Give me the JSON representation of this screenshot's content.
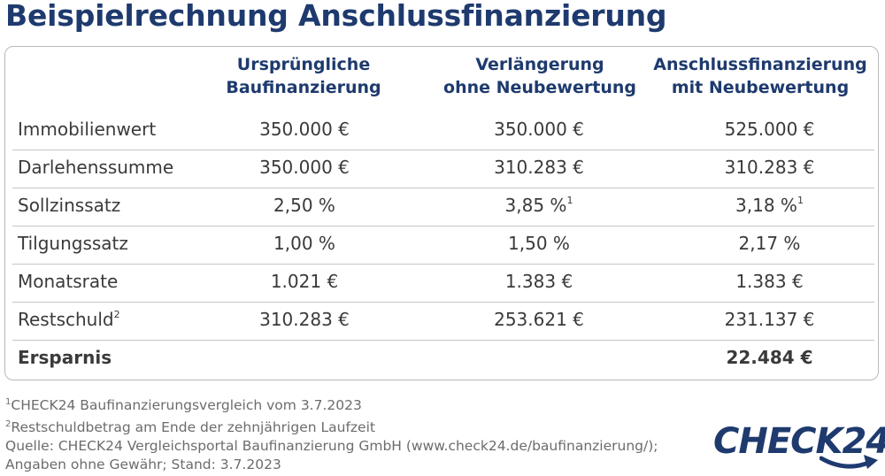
{
  "title": "Beispielrechnung Anschlussfinanzierung",
  "columns": [
    {
      "line1": "Ursprüngliche",
      "line2": "Baufinanzierung"
    },
    {
      "line1": "Verlängerung",
      "line2": "ohne Neubewertung"
    },
    {
      "line1": "Anschlussfinanzierung",
      "line2": "mit Neubewertung"
    }
  ],
  "rows": [
    {
      "label": "Immobilienwert",
      "sup": "",
      "values": [
        "350.000 €",
        "350.000 €",
        "525.000 €"
      ],
      "value_sups": [
        "",
        "",
        ""
      ]
    },
    {
      "label": "Darlehenssumme",
      "sup": "",
      "values": [
        "350.000 €",
        "310.283 €",
        "310.283 €"
      ],
      "value_sups": [
        "",
        "",
        ""
      ]
    },
    {
      "label": "Sollzinssatz",
      "sup": "",
      "values": [
        "2,50 %",
        "3,85 %",
        "3,18 %"
      ],
      "value_sups": [
        "",
        "1",
        "1"
      ]
    },
    {
      "label": "Tilgungssatz",
      "sup": "",
      "values": [
        "1,00 %",
        "1,50 %",
        "2,17 %"
      ],
      "value_sups": [
        "",
        "",
        ""
      ]
    },
    {
      "label": "Monatsrate",
      "sup": "",
      "values": [
        "1.021 €",
        "1.383 €",
        "1.383 €"
      ],
      "value_sups": [
        "",
        "",
        ""
      ]
    },
    {
      "label": "Restschuld",
      "sup": "2",
      "values": [
        "310.283 €",
        "253.621 €",
        "231.137 €"
      ],
      "value_sups": [
        "",
        "",
        ""
      ]
    }
  ],
  "total": {
    "label": "Ersparnis",
    "value": "22.484 €"
  },
  "notes": {
    "note1_sup": "1",
    "note1": "CHECK24 Baufinanzierungsvergleich vom 3.7.2023",
    "note2_sup": "2",
    "note2": "Restschuldbetrag am Ende der zehnjährigen Laufzeit",
    "source": "Quelle: CHECK24 Vergleichsportal Baufinanzierung GmbH (www.check24.de/baufinanzierung/);",
    "disclaimer": "Angaben ohne Gewähr; Stand: 3.7.2023"
  },
  "logo": {
    "text": "CHECK24",
    "icon": "swoosh-arrow-icon"
  },
  "colors": {
    "brand": "#1e3a6e",
    "text": "#3a3a3a",
    "note": "#6c6c6c",
    "border": "#b9b9b9"
  }
}
